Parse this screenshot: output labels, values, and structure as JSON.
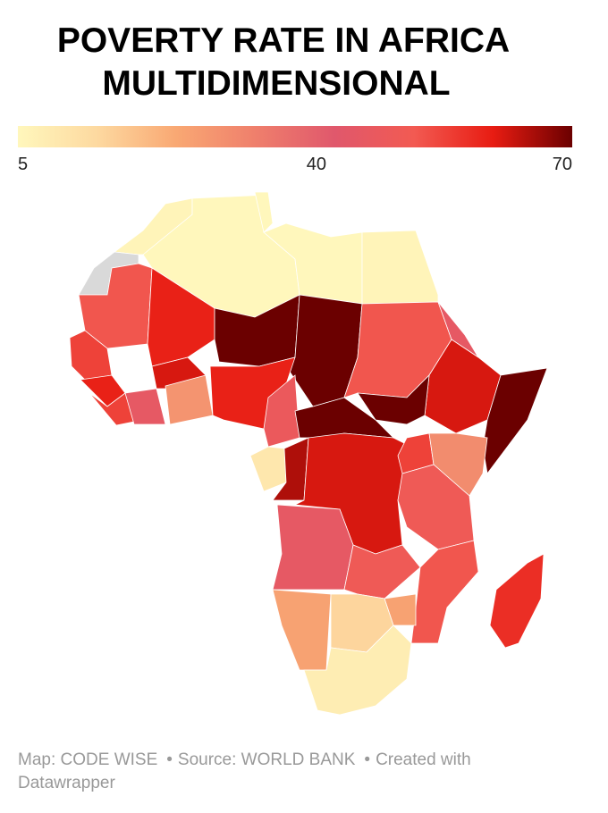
{
  "chart_data": {
    "type": "choropleth",
    "title": [
      "POVERTY RATE IN AFRICA",
      "MULTIDIMENSIONAL"
    ],
    "range": [
      5,
      70
    ],
    "ticks": [
      5,
      40,
      70
    ],
    "colors": [
      "#fff7bc",
      "#fdd9a0",
      "#f9a873",
      "#ef7f6c",
      "#e0586c",
      "#f25a52",
      "#e81c12",
      "#6b0000"
    ],
    "no_data_color": "#d9d9d9",
    "values": [
      6,
      null,
      5,
      5,
      5,
      6,
      52,
      60,
      70,
      70,
      52,
      45,
      62,
      70,
      70,
      55,
      60,
      55,
      45,
      62,
      28,
      60,
      48,
      70,
      10,
      65,
      62,
      55,
      30,
      50,
      45,
      50,
      52,
      25,
      25,
      15,
      8,
      58
    ],
    "credits": [
      "Map: CODE WISE",
      "Source: WORLD BANK",
      "Created with Datawrapper"
    ]
  }
}
